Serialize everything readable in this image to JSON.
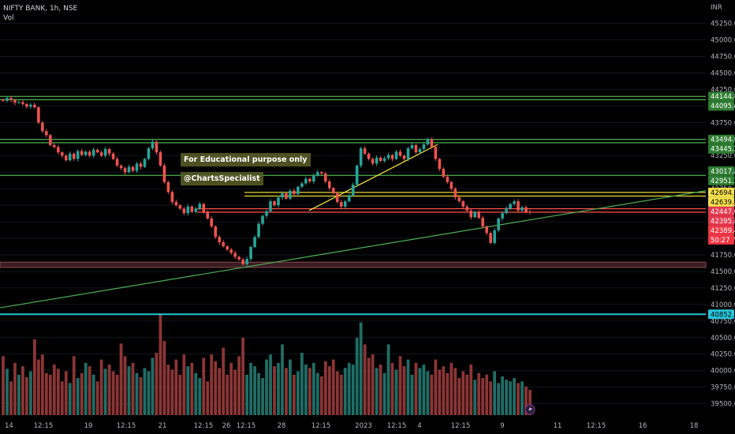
{
  "header": {
    "symbol_line": "NIFTY BANK, 1h, NSE",
    "indicator": "Vol",
    "currency": "INR"
  },
  "annotations": {
    "note1": "For Educational purpose only",
    "note2": "@ChartsSpecialist"
  },
  "colors": {
    "background": "#000000",
    "up_candle": "#26a69a",
    "down_candle": "#ef5350",
    "green_line": "#4caf50",
    "yellow_line": "#ffeb3b",
    "red_line": "#ff5252",
    "cyan_line": "#26c6da",
    "grid": "#131722"
  },
  "y_axis": {
    "ticks": [
      "45250.00",
      "45000.00",
      "44750.00",
      "44500.00",
      "44250.00",
      "44000.00",
      "43750.00",
      "43500.00",
      "43250.00",
      "43000.00",
      "42750.00",
      "42500.00",
      "42250.00",
      "42000.00",
      "41750.00",
      "41500.00",
      "41250.00",
      "41000.00",
      "40750.00",
      "40500.00",
      "40250.00",
      "40000.00",
      "39750.00",
      "39500.00"
    ]
  },
  "x_axis": {
    "ticks": [
      "14",
      "12:15",
      "19",
      "12:15",
      "21",
      "12:15",
      "26",
      "12:15",
      "28",
      "12:15",
      "2023",
      "12:15",
      "4",
      "12:15",
      "9",
      "11",
      "12:15",
      "16",
      "18"
    ]
  },
  "price_badges": [
    {
      "label": "44144.80",
      "price": 44144.8,
      "kind": "green"
    },
    {
      "label": "44095.40",
      "price": 44095.4,
      "kind": "green"
    },
    {
      "label": "43494.55",
      "price": 43494.55,
      "kind": "green"
    },
    {
      "label": "43445.20",
      "price": 43445.2,
      "kind": "green"
    },
    {
      "label": "43017.20",
      "price": 43017.2,
      "kind": "green"
    },
    {
      "label": "42951.35",
      "price": 42951.35,
      "kind": "green"
    },
    {
      "label": "42694.20",
      "price": 42694.2,
      "kind": "yellow"
    },
    {
      "label": "42639.30",
      "price": 42639.3,
      "kind": "yellow"
    },
    {
      "label": "42447.60",
      "price": 42447.6,
      "kind": "red"
    },
    {
      "label": "42395.10",
      "price": 42395.1,
      "kind": "red"
    },
    {
      "label": "42389.45",
      "price": 42389.45,
      "kind": "redlast"
    },
    {
      "label": "50:27",
      "price": 42270,
      "kind": "redlast"
    },
    {
      "label": "40852.25",
      "price": 40852.25,
      "kind": "cyan"
    }
  ],
  "chart_data": {
    "type": "candlestick",
    "ylim": [
      39400,
      45400
    ],
    "horizontal_levels": [
      {
        "price": 44144.8,
        "color": "green"
      },
      {
        "price": 44095.4,
        "color": "green"
      },
      {
        "price": 43494.55,
        "color": "green"
      },
      {
        "price": 43445.2,
        "color": "green"
      },
      {
        "price": 42951.35,
        "color": "green"
      },
      {
        "price": 42694.2,
        "color": "yellow"
      },
      {
        "price": 42639.3,
        "color": "yellow"
      },
      {
        "price": 42447.6,
        "color": "red"
      },
      {
        "price": 42395.1,
        "color": "red"
      },
      {
        "price": 40852.25,
        "color": "cyan"
      }
    ],
    "support_zone": [
      41560,
      41640
    ],
    "closes": [
      44080,
      44120,
      44090,
      44050,
      44060,
      44030,
      43990,
      44020,
      43980,
      43750,
      43620,
      43560,
      43410,
      43380,
      43300,
      43250,
      43180,
      43280,
      43200,
      43320,
      43260,
      43310,
      43250,
      43340,
      43300,
      43250,
      43350,
      43280,
      43200,
      43100,
      43060,
      43000,
      43080,
      43020,
      43130,
      43080,
      43200,
      43360,
      43460,
      43300,
      43100,
      42850,
      42700,
      42550,
      42500,
      42450,
      42380,
      42480,
      42400,
      42450,
      42520,
      42400,
      42300,
      42180,
      42020,
      41940,
      41880,
      41830,
      41780,
      41720,
      41680,
      41610,
      41690,
      41870,
      42020,
      42220,
      42340,
      42410,
      42560,
      42500,
      42620,
      42680,
      42600,
      42720,
      42670,
      42780,
      42830,
      42900,
      42860,
      42950,
      43000,
      42980,
      42860,
      42760,
      42680,
      42550,
      42480,
      42560,
      42650,
      42810,
      43100,
      43360,
      43280,
      43200,
      43130,
      43220,
      43170,
      43210,
      43260,
      43200,
      43310,
      43250,
      43200,
      43360,
      43410,
      43300,
      43350,
      43420,
      43500,
      43380,
      43200,
      43050,
      42930,
      42850,
      42750,
      42620,
      42560,
      42480,
      42420,
      42320,
      42400,
      42310,
      42180,
      42080,
      41930,
      42120,
      42300,
      42380,
      42450,
      42520,
      42560,
      42420,
      42470,
      42400,
      42390
    ],
    "volumes": [
      70,
      55,
      40,
      62,
      48,
      58,
      45,
      52,
      90,
      66,
      72,
      50,
      48,
      60,
      55,
      40,
      52,
      38,
      70,
      44,
      50,
      62,
      58,
      48,
      40,
      66,
      55,
      60,
      52,
      48,
      85,
      70,
      58,
      62,
      50,
      45,
      56,
      52,
      68,
      74,
      120,
      88,
      60,
      54,
      66,
      48,
      72,
      58,
      62,
      50,
      44,
      68,
      40,
      72,
      64,
      56,
      80,
      48,
      62,
      54,
      70,
      92,
      48,
      62,
      58,
      50,
      44,
      66,
      72,
      58,
      62,
      84,
      56,
      66,
      48,
      52,
      74,
      60,
      56,
      62,
      50,
      46,
      64,
      58,
      66,
      52,
      48,
      56,
      62,
      60,
      92,
      110,
      84,
      68,
      72,
      56,
      60,
      50,
      84,
      62,
      54,
      70,
      58,
      66,
      48,
      62,
      56,
      60,
      52,
      48,
      66,
      54,
      58,
      50,
      62,
      56,
      44,
      52,
      48,
      60,
      42,
      50,
      44,
      48,
      40,
      52,
      38,
      46,
      42,
      40,
      44,
      38,
      40,
      34,
      30
    ]
  }
}
